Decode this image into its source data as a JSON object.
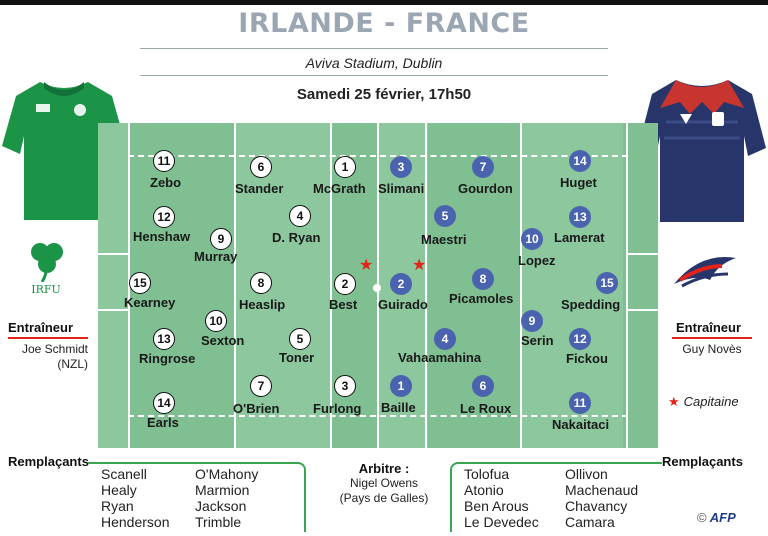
{
  "header": {
    "title": "IRLANDE - FRANCE",
    "stadium": "Aviva Stadium, Dublin",
    "date": "Samedi 25 février, 17h50"
  },
  "ireland": {
    "team_color": "#1b9448",
    "players": [
      {
        "number": "11",
        "name": "Zebo"
      },
      {
        "number": "6",
        "name": "Stander"
      },
      {
        "number": "1",
        "name": "McGrath"
      },
      {
        "number": "12",
        "name": "Henshaw"
      },
      {
        "number": "9",
        "name": "Murray"
      },
      {
        "number": "4",
        "name": "D. Ryan"
      },
      {
        "number": "15",
        "name": "Kearney"
      },
      {
        "number": "8",
        "name": "Heaslip"
      },
      {
        "number": "2",
        "name": "Best"
      },
      {
        "number": "10",
        "name": "Sexton"
      },
      {
        "number": "13",
        "name": "Ringrose"
      },
      {
        "number": "5",
        "name": "Toner"
      },
      {
        "number": "7",
        "name": "O'Brien"
      },
      {
        "number": "3",
        "name": "Furlong"
      },
      {
        "number": "14",
        "name": "Earls"
      }
    ],
    "coach_label": "Entraîneur",
    "coach": "Joe Schmidt",
    "coach_country": "(NZL)",
    "logo_text": "IRFU",
    "subs_label": "Remplaçants",
    "subs_col1": [
      "Scanell",
      "Healy",
      "Ryan",
      "Henderson"
    ],
    "subs_col2": [
      "O'Mahony",
      "Marmion",
      "Jackson",
      "Trimble"
    ]
  },
  "france": {
    "team_color": "#27356b",
    "players": [
      {
        "number": "3",
        "name": "Slimani"
      },
      {
        "number": "7",
        "name": "Gourdon"
      },
      {
        "number": "14",
        "name": "Huget"
      },
      {
        "number": "5",
        "name": "Maestri"
      },
      {
        "number": "10",
        "name": "Lopez"
      },
      {
        "number": "13",
        "name": "Lamerat"
      },
      {
        "number": "2",
        "name": "Guirado"
      },
      {
        "number": "8",
        "name": "Picamoles"
      },
      {
        "number": "15",
        "name": "Spedding"
      },
      {
        "number": "4",
        "name": "Vahaamahina"
      },
      {
        "number": "9",
        "name": "Serin"
      },
      {
        "number": "12",
        "name": "Fickou"
      },
      {
        "number": "1",
        "name": "Baille"
      },
      {
        "number": "6",
        "name": "Le Roux"
      },
      {
        "number": "11",
        "name": "Nakaitaci"
      }
    ],
    "coach_label": "Entraîneur",
    "coach": "Guy Novès",
    "subs_label": "Remplaçants",
    "subs_col1": [
      "Tolofua",
      "Atonio",
      "Ben Arous",
      "Le Devedec"
    ],
    "subs_col2": [
      "Ollivon",
      "Machenaud",
      "Chavancy",
      "Camara"
    ]
  },
  "captain_legend": "Capitaine",
  "referee_label": "Arbitre :",
  "referee": "Nigel Owens",
  "referee_country": "(Pays de Galles)",
  "credit_symbol": "©",
  "credit": "AFP",
  "colors": {
    "field": "#8cc79d",
    "france_number": "#4a63ae",
    "captain_star": "#e2231a",
    "title": "#9aa6b2"
  }
}
